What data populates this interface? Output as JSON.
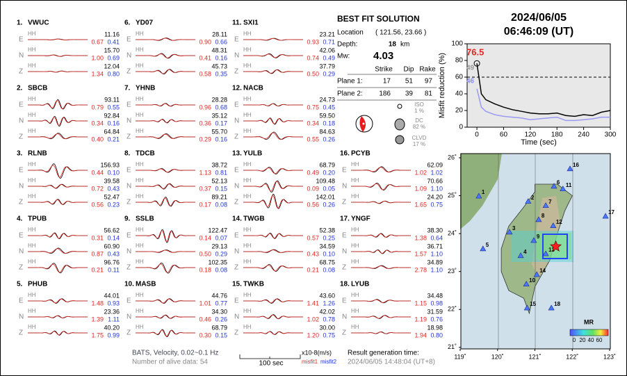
{
  "components": [
    "E",
    "N",
    "Z"
  ],
  "hh_label": "HH",
  "stations": [
    {
      "num": "1.",
      "name": "VWUC",
      "rows": [
        [
          "11.16",
          "0.67",
          "0.41"
        ],
        [
          "15.70",
          "1.00",
          "0.69"
        ],
        [
          "12.04",
          "1.34",
          "0.80"
        ]
      ]
    },
    {
      "num": "2.",
      "name": "SBCB",
      "rows": [
        [
          "93.11",
          "0.79",
          "0.55"
        ],
        [
          "92.84",
          "0.34",
          "0.16"
        ],
        [
          "64.84",
          "0.40",
          "0.21"
        ]
      ]
    },
    {
      "num": "3.",
      "name": "RLNB",
      "rows": [
        [
          "156.93",
          "0.44",
          "0.10"
        ],
        [
          "39.58",
          "0.72",
          "0.43"
        ],
        [
          "52.47",
          "0.56",
          "0.23"
        ]
      ]
    },
    {
      "num": "4.",
      "name": "TPUB",
      "rows": [
        [
          "56.62",
          "0.31",
          "0.14"
        ],
        [
          "60.90",
          "0.87",
          "0.43"
        ],
        [
          "96.76",
          "0.21",
          "0.11"
        ]
      ]
    },
    {
      "num": "5.",
      "name": "PHUB",
      "rows": [
        [
          "44.01",
          "1.48",
          "0.93"
        ],
        [
          "23.36",
          "1.39",
          "1.11"
        ],
        [
          "40.20",
          "1.75",
          "0.99"
        ]
      ]
    },
    {
      "num": "6.",
      "name": "YD07",
      "rows": [
        [
          "28.11",
          "0.90",
          "0.66"
        ],
        [
          "48.31",
          "0.41",
          "0.16"
        ],
        [
          "45.73",
          "0.58",
          "0.35"
        ]
      ]
    },
    {
      "num": "7.",
      "name": "YHNB",
      "rows": [
        [
          "28.28",
          "0.96",
          "0.68"
        ],
        [
          "35.12",
          "0.36",
          "0.17"
        ],
        [
          "55.70",
          "0.29",
          "0.16"
        ]
      ]
    },
    {
      "num": "8.",
      "name": "TDCB",
      "rows": [
        [
          "38.72",
          "1.13",
          "0.81"
        ],
        [
          "52.13",
          "0.37",
          "0.15"
        ],
        [
          "89.21",
          "0.17",
          "0.08"
        ]
      ]
    },
    {
      "num": "9.",
      "name": "SSLB",
      "rows": [
        [
          "122.47",
          "0.14",
          "0.07"
        ],
        [
          "29.13",
          "0.50",
          "0.29"
        ],
        [
          "102.35",
          "0.18",
          "0.08"
        ]
      ]
    },
    {
      "num": "10.",
      "name": "MASB",
      "rows": [
        [
          "44.76",
          "1.01",
          "0.77"
        ],
        [
          "34.30",
          "0.46",
          "0.26"
        ],
        [
          "68.79",
          "0.30",
          "0.15"
        ]
      ]
    },
    {
      "num": "11.",
      "name": "SXI1",
      "rows": [
        [
          "23.21",
          "0.93",
          "0.71"
        ],
        [
          "42.06",
          "0.74",
          "0.49"
        ],
        [
          "37.79",
          "0.50",
          "0.29"
        ]
      ]
    },
    {
      "num": "12.",
      "name": "NACB",
      "rows": [
        [
          "24.73",
          "0.75",
          "0.45"
        ],
        [
          "59.50",
          "0.34",
          "0.18"
        ],
        [
          "84.63",
          "0.55",
          "0.26"
        ]
      ]
    },
    {
      "num": "13.",
      "name": "YULB",
      "rows": [
        [
          "68.79",
          "0.49",
          "0.20"
        ],
        [
          "109.48",
          "0.09",
          "0.05"
        ],
        [
          "142.01",
          "0.56",
          "0.26"
        ]
      ]
    },
    {
      "num": "14.",
      "name": "TWGB",
      "rows": [
        [
          "52.38",
          "0.57",
          "0.25"
        ],
        [
          "34.59",
          "0.43",
          "0.10"
        ],
        [
          "68.75",
          "0.21",
          "0.08"
        ]
      ]
    },
    {
      "num": "15.",
      "name": "TWKB",
      "rows": [
        [
          "43.60",
          "1.41",
          "1.26"
        ],
        [
          "42.02",
          "1.02",
          "0.78"
        ],
        [
          "30.00",
          "1.20",
          "0.75"
        ]
      ]
    },
    {
      "num": "16.",
      "name": "PCYB",
      "rows": [
        [
          "62.09",
          "1.02",
          "1.02"
        ],
        [
          "70.66",
          "1.09",
          "1.10"
        ],
        [
          "24.20",
          "1.65",
          "0.75"
        ]
      ]
    },
    {
      "num": "17.",
      "name": "YNGF",
      "rows": [
        [
          "38.30",
          "1.38",
          "0.64"
        ],
        [
          "36.71",
          "1.57",
          "1.10"
        ],
        [
          "34.89",
          "2.78",
          "1.10"
        ]
      ]
    },
    {
      "num": "18.",
      "name": "LYUB",
      "rows": [
        [
          "34.48",
          "1.15",
          "0.98"
        ],
        [
          "31.59",
          "1.19",
          "0.76"
        ],
        [
          "18.98",
          "1.94",
          "0.80"
        ]
      ]
    }
  ],
  "solution": {
    "title": "BEST FIT SOLUTION",
    "location_label": "Location",
    "location": "( 121.56, 23.66 )",
    "depth_label": "Depth:",
    "depth": "18",
    "depth_unit": "km",
    "mw_label": "Mw:",
    "mw": "4.03",
    "headers": [
      "Strike",
      "Dip",
      "Rake"
    ],
    "planes": [
      {
        "label": "Plane 1:",
        "values": [
          "17",
          "51",
          "97"
        ]
      },
      {
        "label": "Plane 2:",
        "values": [
          "186",
          "39",
          "81"
        ]
      }
    ],
    "iso": [
      "ISO",
      "1 %"
    ],
    "dc": [
      "DC",
      "82 %"
    ],
    "clvd": [
      "CLVD",
      "17 %"
    ]
  },
  "date": "2024/06/05",
  "time": "06:46:09  (UT)",
  "misfit_chart": {
    "type": "line",
    "y_label": "Misfit reduction (%)",
    "x_label": "Time (sec)",
    "xlim": [
      -22,
      300
    ],
    "xticks": [
      0,
      60,
      120,
      180,
      240,
      300
    ],
    "ylim": [
      0,
      100
    ],
    "yticks": [
      0,
      20,
      40,
      60,
      80,
      100
    ],
    "ref_line": 60,
    "annotations": [
      {
        "text": "76.5",
        "color": "#e0261f"
      },
      {
        "text": "49",
        "color": "#999999"
      },
      {
        "text": "46",
        "color": "#8c8cf0"
      }
    ],
    "x": [
      0,
      10,
      20,
      40,
      60,
      80,
      100,
      120,
      140,
      160,
      180,
      200,
      220,
      240,
      260,
      280,
      300
    ],
    "series": [
      {
        "color": "#000000",
        "values": [
          76.5,
          40,
          33,
          28,
          24,
          21,
          19,
          17,
          16,
          16,
          17,
          14,
          13,
          15,
          14,
          18,
          20
        ]
      },
      {
        "color": "#9a9af5",
        "values": [
          46,
          24,
          19,
          15,
          13,
          12,
          11,
          9,
          10,
          11,
          12,
          8,
          8,
          9,
          10,
          12,
          12
        ]
      }
    ]
  },
  "map": {
    "type": "scatter",
    "xlim": [
      119,
      123
    ],
    "ylim": [
      20.96,
      26.11
    ],
    "xticks": [
      {
        "value": 119,
        "label": "119˚"
      },
      {
        "value": 120,
        "label": "120˚"
      },
      {
        "value": 121,
        "label": "121˚"
      },
      {
        "value": 122,
        "label": "122˚"
      },
      {
        "value": 123,
        "label": "123˚"
      }
    ],
    "yticks": [
      {
        "value": 21,
        "label": "21˚"
      },
      {
        "value": 22,
        "label": "22˚"
      },
      {
        "value": 23,
        "label": "23˚"
      },
      {
        "value": 24,
        "label": "24˚"
      },
      {
        "value": 25,
        "label": "25˚"
      },
      {
        "value": 26,
        "label": "26˚"
      }
    ],
    "stations": [
      {
        "label": "1",
        "lon": 119.5,
        "lat": 24.99
      },
      {
        "label": "2",
        "lon": 120.82,
        "lat": 24.85
      },
      {
        "label": "3",
        "lon": 120.32,
        "lat": 24.04
      },
      {
        "label": "4",
        "lon": 120.62,
        "lat": 23.42
      },
      {
        "label": "5",
        "lon": 119.61,
        "lat": 23.6
      },
      {
        "label": "6",
        "lon": 121.51,
        "lat": 25.25
      },
      {
        "label": "7",
        "lon": 121.29,
        "lat": 24.74
      },
      {
        "label": "8",
        "lon": 121.1,
        "lat": 24.37
      },
      {
        "label": "9",
        "lon": 120.97,
        "lat": 23.82
      },
      {
        "label": "10",
        "lon": 120.77,
        "lat": 22.67
      },
      {
        "label": "11",
        "lon": 121.75,
        "lat": 25.18
      },
      {
        "label": "12",
        "lon": 121.49,
        "lat": 24.21
      },
      {
        "label": "13",
        "lon": 121.29,
        "lat": 23.47
      },
      {
        "label": "14",
        "lon": 121.05,
        "lat": 22.92
      },
      {
        "label": "15",
        "lon": 120.79,
        "lat": 22.04
      },
      {
        "label": "16",
        "lon": 121.94,
        "lat": 25.71
      },
      {
        "label": "17",
        "lon": 122.89,
        "lat": 24.46
      },
      {
        "label": "18",
        "lon": 121.44,
        "lat": 22.04
      }
    ],
    "event": {
      "lon": 121.56,
      "lat": 23.66
    },
    "colorbar_title": "MR",
    "colorbar_ticks": [
      0,
      20,
      40,
      60
    ]
  },
  "footer": {
    "source": "BATS, Velocity, 0.02~0.1 Hz",
    "alive": "Number of alive data: 54",
    "scale": "100 sec",
    "unit": "x10-8(m/s)",
    "misfit1": "misfit1",
    "misfit2": "misfit2",
    "gen_label": "Result generation time:",
    "gen_time": "2024/06/05 14:48:04 (UT+8)"
  }
}
